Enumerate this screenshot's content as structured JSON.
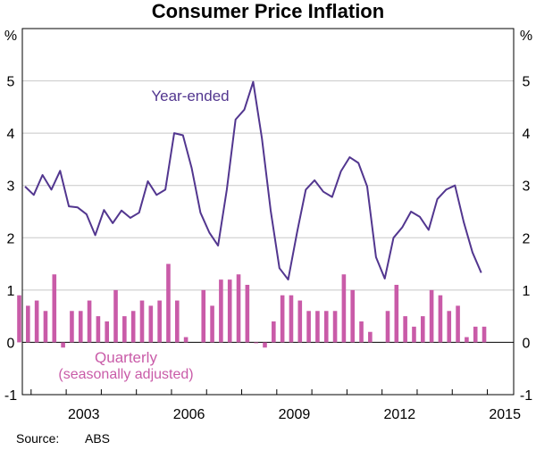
{
  "chart_data": {
    "type": "line",
    "title": "Consumer Price Inflation",
    "unit_left": "%",
    "unit_right": "%",
    "ylim": [
      -1,
      6
    ],
    "yticks": [
      -1,
      0,
      1,
      2,
      3,
      4,
      5
    ],
    "x_start": 2001.75,
    "x_end": 2015.75,
    "xtick_labels": [
      "2003",
      "2006",
      "2009",
      "2012",
      "2015"
    ],
    "grid": true,
    "series": [
      {
        "name": "Year-ended",
        "color": "#52368f",
        "x_start": 2001.75,
        "values": [
          2.98,
          2.82,
          3.2,
          2.92,
          3.28,
          2.6,
          2.58,
          2.45,
          2.05,
          2.53,
          2.28,
          2.52,
          2.38,
          2.48,
          3.08,
          2.82,
          2.92,
          4.0,
          3.96,
          3.33,
          2.48,
          2.1,
          1.85,
          2.92,
          4.26,
          4.45,
          4.98,
          3.9,
          2.52,
          1.42,
          1.2,
          2.1,
          2.92,
          3.1,
          2.88,
          2.78,
          3.27,
          3.54,
          3.43,
          2.98,
          1.63,
          1.22,
          2.0,
          2.2,
          2.5,
          2.4,
          2.15,
          2.74,
          2.92,
          3.0,
          2.3,
          1.72,
          1.33
        ]
      },
      {
        "name": "Quarterly",
        "label_line2": "(seasonally adjusted)",
        "color": "#c95ba8",
        "x_start": 2001.75,
        "values": [
          0.9,
          0.7,
          0.8,
          0.6,
          1.3,
          -0.1,
          0.6,
          0.6,
          0.8,
          0.5,
          0.4,
          1.0,
          0.5,
          0.6,
          0.8,
          0.7,
          0.8,
          1.5,
          0.8,
          0.1,
          null,
          1.0,
          0.7,
          1.2,
          1.2,
          1.3,
          1.1,
          0.0,
          -0.1,
          0.4,
          0.9,
          0.9,
          0.8,
          0.6,
          0.6,
          0.6,
          0.6,
          1.3,
          1.0,
          0.4,
          0.2,
          null,
          0.6,
          1.1,
          0.5,
          0.3,
          0.5,
          1.0,
          0.9,
          0.6,
          0.7,
          0.1,
          0.3,
          0.3
        ]
      }
    ],
    "source_label": "Source:",
    "source_value": "ABS"
  }
}
